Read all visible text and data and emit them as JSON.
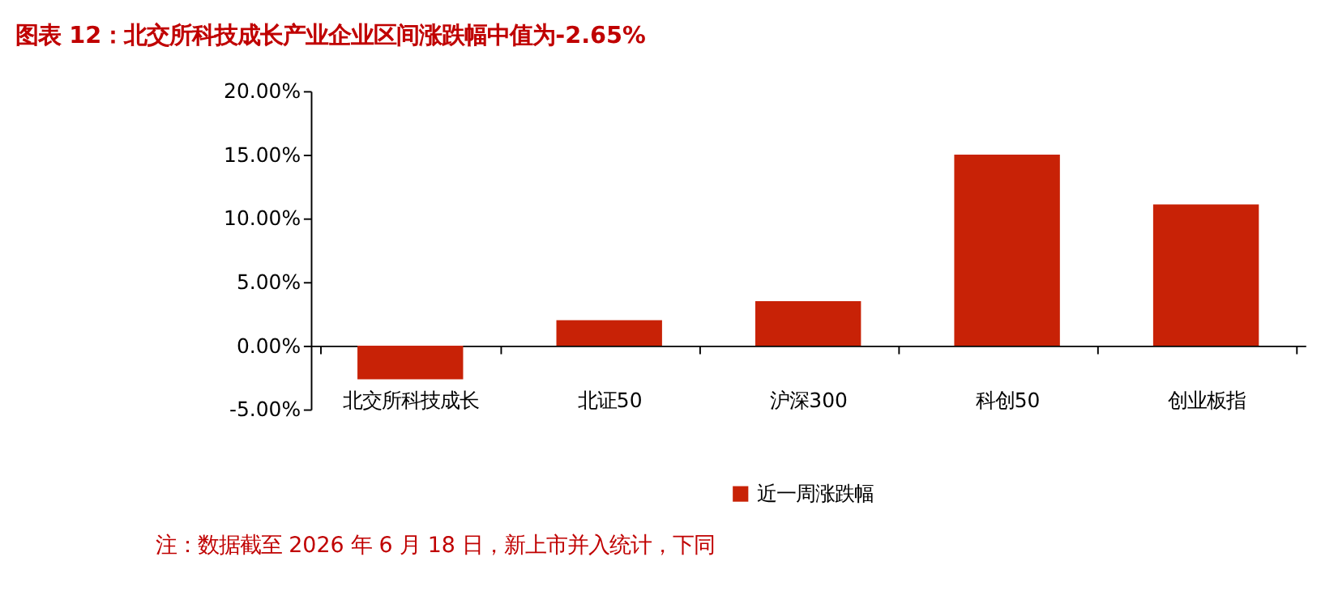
{
  "chart_data": {
    "type": "bar",
    "title": "图表 12：北交所科技成长产业企业区间涨跌幅中值为-2.65%",
    "categories": [
      "北交所科技成长",
      "北证50",
      "沪深300",
      "科创50",
      "创业板指"
    ],
    "series": [
      {
        "name": "近一周涨跌幅",
        "color": "#c82206",
        "values": [
          -2.65,
          2.0,
          3.5,
          15.0,
          11.1
        ]
      }
    ],
    "ylim": [
      -5,
      20
    ],
    "yticks": [
      {
        "value": -5,
        "label": "-5.00%"
      },
      {
        "value": 0,
        "label": "0.00%"
      },
      {
        "value": 5,
        "label": "5.00%"
      },
      {
        "value": 10,
        "label": "10.00%"
      },
      {
        "value": 15,
        "label": "15.00%"
      },
      {
        "value": 20,
        "label": "20.00%"
      }
    ],
    "grid": false,
    "legend": "bottom",
    "annotations": [
      "注：数据截至 2026 年 6 月 18 日，新上市并入统计，下同"
    ]
  }
}
